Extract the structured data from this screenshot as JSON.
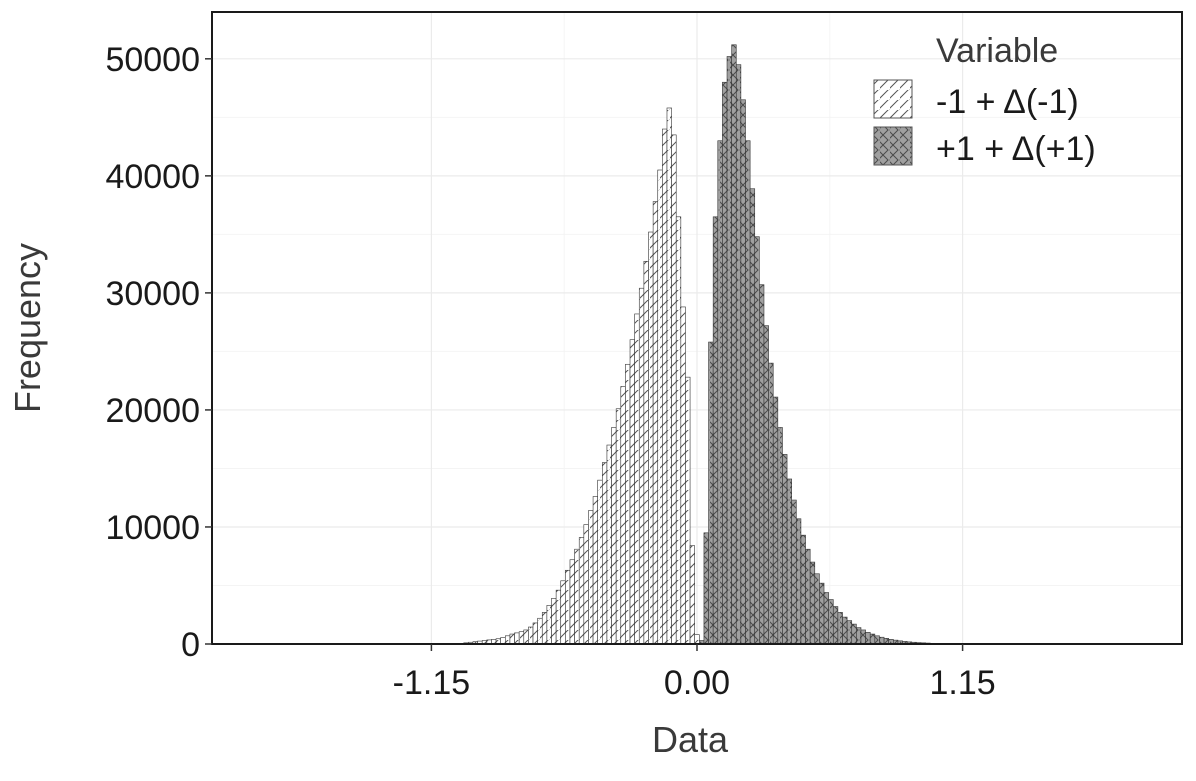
{
  "chart_data": {
    "type": "bar",
    "xlabel": "Data",
    "ylabel": "Frequency",
    "xlim": [
      -2.1,
      2.1
    ],
    "ylim": [
      0,
      54000
    ],
    "x_ticks": [
      -1.15,
      0.0,
      1.15
    ],
    "x_tick_labels": [
      "-1.15",
      "0.00",
      "1.15"
    ],
    "y_ticks": [
      0,
      10000,
      20000,
      30000,
      40000,
      50000
    ],
    "y_tick_labels": [
      "0",
      "10000",
      "20000",
      "30000",
      "40000",
      "50000"
    ],
    "grid": true,
    "legend_position": "top-right",
    "legend_title": "Variable",
    "series": [
      {
        "name": "-1 + Δ(-1)",
        "pattern": "diagonal-stripes",
        "fill": "#ffffff",
        "bins": [
          [
            -1.0,
            100
          ],
          [
            -0.98,
            150
          ],
          [
            -0.96,
            200
          ],
          [
            -0.94,
            250
          ],
          [
            -0.92,
            300
          ],
          [
            -0.9,
            350
          ],
          [
            -0.88,
            400
          ],
          [
            -0.86,
            450
          ],
          [
            -0.84,
            550
          ],
          [
            -0.82,
            700
          ],
          [
            -0.8,
            850
          ],
          [
            -0.78,
            950
          ],
          [
            -0.76,
            1050
          ],
          [
            -0.74,
            1200
          ],
          [
            -0.72,
            1450
          ],
          [
            -0.7,
            1800
          ],
          [
            -0.68,
            2200
          ],
          [
            -0.66,
            2700
          ],
          [
            -0.64,
            3300
          ],
          [
            -0.62,
            3900
          ],
          [
            -0.6,
            4600
          ],
          [
            -0.58,
            5400
          ],
          [
            -0.56,
            6300
          ],
          [
            -0.54,
            7200
          ],
          [
            -0.52,
            8100
          ],
          [
            -0.5,
            9100
          ],
          [
            -0.48,
            10200
          ],
          [
            -0.46,
            11400
          ],
          [
            -0.44,
            12600
          ],
          [
            -0.42,
            14000
          ],
          [
            -0.4,
            15500
          ],
          [
            -0.38,
            17000
          ],
          [
            -0.36,
            18500
          ],
          [
            -0.34,
            20100
          ],
          [
            -0.32,
            22000
          ],
          [
            -0.3,
            23900
          ],
          [
            -0.28,
            26000
          ],
          [
            -0.26,
            28200
          ],
          [
            -0.24,
            30400
          ],
          [
            -0.22,
            32700
          ],
          [
            -0.2,
            35200
          ],
          [
            -0.18,
            37800
          ],
          [
            -0.16,
            40500
          ],
          [
            -0.14,
            44000
          ],
          [
            -0.12,
            45800
          ],
          [
            -0.1,
            43500
          ],
          [
            -0.08,
            36500
          ],
          [
            -0.06,
            28800
          ],
          [
            -0.04,
            22800
          ],
          [
            -0.02,
            8400
          ],
          [
            0.0,
            800
          ]
        ]
      },
      {
        "name": "+1 + Δ(+1)",
        "pattern": "crosshatch",
        "fill": "#a0a0a0",
        "bins": [
          [
            0.02,
            300
          ],
          [
            0.04,
            9500
          ],
          [
            0.06,
            25800
          ],
          [
            0.08,
            36500
          ],
          [
            0.1,
            43000
          ],
          [
            0.12,
            48000
          ],
          [
            0.14,
            50200
          ],
          [
            0.16,
            51200
          ],
          [
            0.18,
            49500
          ],
          [
            0.2,
            46500
          ],
          [
            0.22,
            43000
          ],
          [
            0.24,
            38900
          ],
          [
            0.26,
            34800
          ],
          [
            0.28,
            30700
          ],
          [
            0.3,
            27200
          ],
          [
            0.32,
            24000
          ],
          [
            0.34,
            21100
          ],
          [
            0.36,
            18500
          ],
          [
            0.38,
            16200
          ],
          [
            0.4,
            14100
          ],
          [
            0.42,
            12300
          ],
          [
            0.44,
            10700
          ],
          [
            0.46,
            9300
          ],
          [
            0.48,
            8100
          ],
          [
            0.5,
            7000
          ],
          [
            0.52,
            6000
          ],
          [
            0.54,
            5200
          ],
          [
            0.56,
            4400
          ],
          [
            0.58,
            3800
          ],
          [
            0.6,
            3200
          ],
          [
            0.62,
            2700
          ],
          [
            0.64,
            2300
          ],
          [
            0.66,
            2000
          ],
          [
            0.68,
            1700
          ],
          [
            0.7,
            1400
          ],
          [
            0.72,
            1200
          ],
          [
            0.74,
            1000
          ],
          [
            0.76,
            850
          ],
          [
            0.78,
            700
          ],
          [
            0.8,
            580
          ],
          [
            0.82,
            480
          ],
          [
            0.84,
            400
          ],
          [
            0.86,
            330
          ],
          [
            0.88,
            270
          ],
          [
            0.9,
            220
          ],
          [
            0.92,
            180
          ],
          [
            0.94,
            150
          ],
          [
            0.96,
            120
          ],
          [
            0.98,
            100
          ],
          [
            1.0,
            80
          ],
          [
            1.02,
            60
          ],
          [
            1.04,
            50
          ],
          [
            1.06,
            40
          ],
          [
            1.08,
            30
          ],
          [
            1.1,
            20
          ]
        ]
      }
    ]
  }
}
